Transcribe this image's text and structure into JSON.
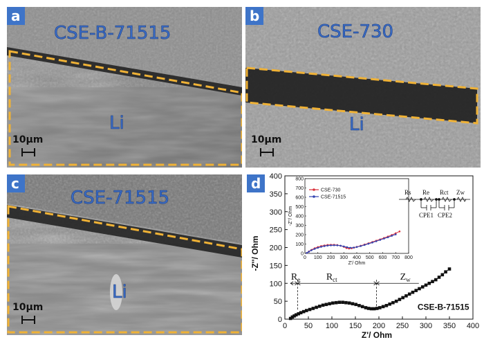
{
  "panels": [
    {
      "id": "a",
      "label": "a",
      "title": "CSE-B-71515",
      "li": "Li",
      "scale": "10μm"
    },
    {
      "id": "b",
      "label": "b",
      "title": "CSE-730",
      "li": "Li",
      "scale": "10μm"
    },
    {
      "id": "c",
      "label": "c",
      "title": "CSE-71515",
      "li": "Li",
      "scale": "10μm"
    }
  ],
  "colors": {
    "label_bg": "#3e74c8",
    "dash": "#f0b236",
    "sem_text": "#3a6cc4",
    "series_730": "#d9303a",
    "series_71515": "#3444b0"
  },
  "chart_panel_label": "d",
  "chart_data": [
    {
      "type": "scatter",
      "title": "",
      "xlabel": "Z'/ Ohm",
      "ylabel": "-Z''/ Ohm",
      "xlim": [
        0,
        400
      ],
      "ylim": [
        0,
        400
      ],
      "xticks": [
        0,
        50,
        100,
        150,
        200,
        250,
        300,
        350,
        400
      ],
      "yticks": [
        0,
        50,
        100,
        150,
        200,
        250,
        300,
        350,
        400
      ],
      "sample_label": "CSE-B-71515",
      "regions": {
        "re": "R",
        "re_sub": "e",
        "rct": "R",
        "rct_sub": "ct",
        "zw": "Z",
        "zw_sub": "w"
      },
      "series": [
        {
          "name": "CSE-B-71515",
          "x": [
            12,
            16,
            20,
            24,
            29,
            34,
            40,
            46,
            53,
            60,
            67,
            74,
            81,
            88,
            95,
            102,
            109,
            116,
            123,
            130,
            137,
            144,
            151,
            158,
            165,
            172,
            178,
            184,
            190,
            196,
            202,
            209,
            216,
            223,
            230,
            237,
            244,
            251,
            258,
            265,
            272,
            279,
            286,
            293,
            300,
            307,
            314,
            321,
            328,
            335,
            342,
            350
          ],
          "y": [
            2,
            6,
            9,
            12,
            15,
            18,
            21,
            24,
            27,
            30,
            33,
            36,
            39,
            41,
            43,
            45,
            46,
            47,
            47,
            46,
            45,
            43,
            41,
            38,
            35,
            32,
            30,
            29,
            29,
            30,
            32,
            35,
            38,
            42,
            46,
            50,
            55,
            60,
            65,
            70,
            75,
            80,
            85,
            90,
            95,
            100,
            105,
            110,
            117,
            124,
            132,
            140
          ]
        }
      ]
    },
    {
      "type": "line",
      "title": "",
      "xlabel": "Z'/ Ohm",
      "ylabel": "-Z''/ Ohm",
      "xlim": [
        0,
        800
      ],
      "ylim": [
        0,
        800
      ],
      "xticks": [
        0,
        100,
        200,
        300,
        400,
        500,
        600,
        700,
        800
      ],
      "yticks": [
        0,
        100,
        200,
        300,
        400,
        500,
        600,
        700,
        800
      ],
      "legend_position": "top-left",
      "series": [
        {
          "name": "CSE-730",
          "x": [
            15,
            30,
            50,
            75,
            100,
            125,
            150,
            175,
            200,
            225,
            250,
            275,
            300,
            320,
            340,
            360,
            380,
            400,
            430,
            460,
            490,
            520,
            550,
            580,
            610,
            640,
            670,
            700,
            730
          ],
          "y": [
            5,
            20,
            38,
            55,
            68,
            78,
            85,
            90,
            92,
            92,
            89,
            82,
            70,
            57,
            52,
            55,
            62,
            70,
            82,
            95,
            108,
            122,
            136,
            150,
            165,
            180,
            197,
            215,
            235
          ]
        },
        {
          "name": "CSE-71515",
          "x": [
            15,
            30,
            50,
            75,
            100,
            125,
            150,
            175,
            200,
            225,
            250,
            275,
            300,
            325,
            350,
            375,
            400,
            430,
            460,
            490,
            520,
            550,
            580,
            610,
            640,
            670,
            700
          ],
          "y": [
            5,
            18,
            33,
            48,
            60,
            70,
            78,
            83,
            86,
            87,
            86,
            82,
            75,
            66,
            60,
            62,
            68,
            78,
            90,
            103,
            116,
            130,
            144,
            158,
            172,
            188,
            203
          ]
        }
      ]
    }
  ],
  "circuit": {
    "labels": [
      "Rs",
      "Re",
      "Rct",
      "Zw",
      "CPE1",
      "CPE2"
    ]
  }
}
